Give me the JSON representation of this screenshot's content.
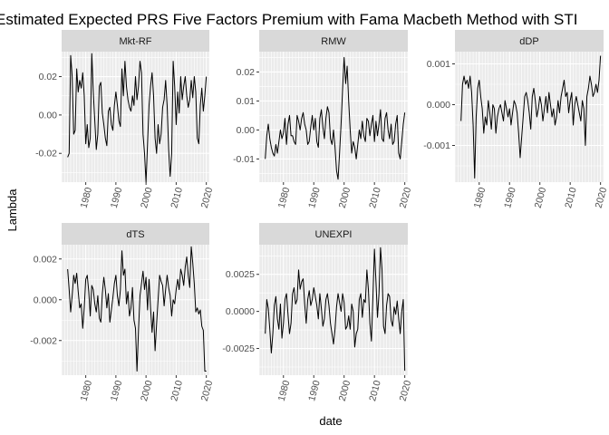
{
  "chart_data": {
    "type": "line",
    "title": "Estimated Expected PRS Five Factors Premium with Fama Macbeth Method with STI",
    "xlabel": "date",
    "ylabel": "Lambda",
    "x_ticks": [
      "1980",
      "1990",
      "2000",
      "2010",
      "2020"
    ],
    "xlim": [
      1972,
      2021
    ],
    "facets": [
      {
        "name": "Mkt-RF",
        "ylim": [
          -0.035,
          0.033
        ],
        "y_ticks": [
          0.02,
          0.0,
          -0.02
        ],
        "y_tick_labels": [
          "0.02",
          "0.00",
          "-0.02"
        ],
        "x": [
          1974,
          1974.5,
          1975,
          1975.5,
          1976,
          1976.5,
          1977,
          1977.5,
          1978,
          1978.5,
          1979,
          1979.5,
          1980,
          1980.5,
          1981,
          1981.5,
          1982,
          1982.5,
          1983,
          1983.5,
          1984,
          1984.5,
          1985,
          1985.5,
          1986,
          1986.5,
          1987,
          1987.5,
          1988,
          1988.5,
          1989,
          1989.5,
          1990,
          1990.5,
          1991,
          1991.5,
          1992,
          1992.5,
          1993,
          1993.5,
          1994,
          1994.5,
          1995,
          1995.5,
          1996,
          1996.5,
          1997,
          1997.5,
          1998,
          1998.5,
          1999,
          1999.5,
          2000,
          2000.5,
          2001,
          2001.5,
          2002,
          2002.5,
          2003,
          2003.5,
          2004,
          2004.5,
          2005,
          2005.5,
          2006,
          2006.5,
          2007,
          2007.5,
          2008,
          2008.5,
          2009,
          2009.5,
          2010,
          2010.5,
          2011,
          2011.5,
          2012,
          2012.5,
          2013,
          2013.5,
          2014,
          2014.5,
          2015,
          2015.5,
          2016,
          2016.5,
          2017,
          2017.5,
          2018,
          2018.5,
          2019,
          2019.5,
          2020
        ],
        "y": [
          -0.022,
          -0.02,
          0.031,
          0.02,
          -0.01,
          -0.008,
          0.024,
          0.012,
          0.018,
          0.014,
          0.022,
          0.01,
          -0.015,
          -0.005,
          -0.017,
          -0.012,
          0.032,
          0.012,
          -0.003,
          -0.018,
          -0.01,
          0.015,
          0.017,
          0.001,
          -0.005,
          -0.012,
          -0.016,
          0.002,
          0.004,
          -0.005,
          -0.008,
          0.005,
          0.012,
          0.005,
          -0.003,
          -0.006,
          0.024,
          0.01,
          0.028,
          0.015,
          0.008,
          0.004,
          0.002,
          0.01,
          0.005,
          0.02,
          0.008,
          0.015,
          0.028,
          0.022,
          -0.01,
          -0.02,
          -0.035,
          -0.015,
          0.005,
          0.015,
          0.022,
          0.01,
          -0.012,
          -0.02,
          -0.005,
          -0.015,
          -0.01,
          0.004,
          0.008,
          0.018,
          0.005,
          -0.018,
          -0.032,
          -0.02,
          0.028,
          0.015,
          -0.005,
          0.012,
          0.001,
          0.02,
          0.008,
          0.015,
          0.02,
          0.01,
          0.004,
          0.008,
          0.018,
          0.009,
          0.02,
          0.012,
          -0.012,
          -0.015,
          0.005,
          0.014,
          0.002,
          0.01,
          0.02
        ]
      },
      {
        "name": "RMW",
        "ylim": [
          -0.018,
          0.027
        ],
        "y_ticks": [
          0.02,
          0.01,
          0.0,
          -0.01
        ],
        "y_tick_labels": [
          "0.02",
          "0.01",
          "0.00",
          "-0.01"
        ],
        "x": [
          1974,
          1974.5,
          1975,
          1975.5,
          1976,
          1976.5,
          1977,
          1977.5,
          1978,
          1978.5,
          1979,
          1979.5,
          1980,
          1980.5,
          1981,
          1981.5,
          1982,
          1982.5,
          1983,
          1983.5,
          1984,
          1984.5,
          1985,
          1985.5,
          1986,
          1986.5,
          1987,
          1987.5,
          1988,
          1988.5,
          1989,
          1989.5,
          1990,
          1990.5,
          1991,
          1991.5,
          1992,
          1992.5,
          1993,
          1993.5,
          1994,
          1994.5,
          1995,
          1995.5,
          1996,
          1996.5,
          1997,
          1997.5,
          1998,
          1998.5,
          1999,
          1999.5,
          2000,
          2000.5,
          2001,
          2001.5,
          2002,
          2002.5,
          2003,
          2003.5,
          2004,
          2004.5,
          2005,
          2005.5,
          2006,
          2006.5,
          2007,
          2007.5,
          2008,
          2008.5,
          2009,
          2009.5,
          2010,
          2010.5,
          2011,
          2011.5,
          2012,
          2012.5,
          2013,
          2013.5,
          2014,
          2014.5,
          2015,
          2015.5,
          2016,
          2016.5,
          2017,
          2017.5,
          2018,
          2018.5,
          2019,
          2019.5,
          2020
        ],
        "y": [
          -0.01,
          -0.002,
          0.002,
          -0.003,
          -0.006,
          -0.008,
          -0.009,
          -0.005,
          -0.008,
          -0.004,
          0.0,
          -0.003,
          -0.001,
          0.004,
          -0.005,
          0.002,
          0.005,
          -0.002,
          -0.002,
          -0.004,
          -0.005,
          0.005,
          0.003,
          0.0,
          0.004,
          0.006,
          0.002,
          0.0,
          -0.005,
          -0.004,
          0.001,
          0.005,
          0.0,
          0.004,
          -0.004,
          -0.006,
          0.004,
          0.007,
          0.001,
          -0.003,
          0.004,
          0.008,
          0.006,
          -0.003,
          -0.005,
          0.0,
          -0.006,
          -0.014,
          -0.017,
          -0.008,
          0.002,
          0.014,
          0.025,
          0.016,
          0.022,
          0.01,
          0.0,
          -0.008,
          -0.004,
          -0.006,
          -0.01,
          -0.005,
          0.0,
          -0.003,
          0.003,
          -0.002,
          -0.004,
          0.004,
          0.003,
          -0.002,
          0.002,
          0.005,
          -0.004,
          0.003,
          -0.002,
          0.002,
          0.007,
          -0.003,
          -0.004,
          0.004,
          0.006,
          0.0,
          -0.003,
          0.002,
          -0.005,
          -0.004,
          0.002,
          0.005,
          -0.008,
          -0.01,
          -0.004,
          0.002,
          0.006
        ]
      },
      {
        "name": "dDP",
        "ylim": [
          -0.0019,
          0.0013
        ],
        "y_ticks": [
          0.001,
          0.0,
          -0.001
        ],
        "y_tick_labels": [
          "0.001",
          "0.000",
          "-0.001"
        ],
        "x": [
          1974,
          1974.5,
          1975,
          1975.5,
          1976,
          1976.5,
          1977,
          1977.5,
          1978,
          1978.5,
          1979,
          1979.5,
          1980,
          1980.5,
          1981,
          1981.5,
          1982,
          1982.5,
          1983,
          1983.5,
          1984,
          1984.5,
          1985,
          1985.5,
          1986,
          1986.5,
          1987,
          1987.5,
          1988,
          1988.5,
          1989,
          1989.5,
          1990,
          1990.5,
          1991,
          1991.5,
          1992,
          1992.5,
          1993,
          1993.5,
          1994,
          1994.5,
          1995,
          1995.5,
          1996,
          1996.5,
          1997,
          1997.5,
          1998,
          1998.5,
          1999,
          1999.5,
          2000,
          2000.5,
          2001,
          2001.5,
          2002,
          2002.5,
          2003,
          2003.5,
          2004,
          2004.5,
          2005,
          2005.5,
          2006,
          2006.5,
          2007,
          2007.5,
          2008,
          2008.5,
          2009,
          2009.5,
          2010,
          2010.5,
          2011,
          2011.5,
          2012,
          2012.5,
          2013,
          2013.5,
          2014,
          2014.5,
          2015,
          2015.5,
          2016,
          2016.5,
          2017,
          2017.5,
          2018,
          2018.5,
          2019,
          2019.5,
          2020
        ],
        "y": [
          -0.0004,
          0.0005,
          0.0007,
          0.0005,
          0.0006,
          0.0004,
          0.0007,
          0.0003,
          -0.0005,
          -0.0018,
          -0.0003,
          0.0004,
          0.0006,
          0.0002,
          -0.0001,
          -0.0007,
          -0.0003,
          -0.0005,
          0.0001,
          -0.0002,
          -0.0006,
          0.0,
          -0.0001,
          -0.0007,
          -0.0003,
          -0.0001,
          0.0,
          -0.0002,
          -0.0004,
          0.0001,
          -0.0001,
          -0.0003,
          -0.0001,
          -0.0005,
          -0.0002,
          0.0001,
          0.0,
          -0.0002,
          -0.0007,
          -0.0013,
          -0.0008,
          -0.0003,
          0.0002,
          0.0003,
          0.0001,
          -0.0002,
          -0.0006,
          0.0002,
          0.0004,
          0.0001,
          -0.0003,
          -0.0001,
          0.0002,
          0.0,
          -0.0004,
          -0.0001,
          0.0002,
          -0.0002,
          0.0003,
          0.0,
          -0.0003,
          -0.0001,
          -0.0005,
          -0.0003,
          0.0001,
          -0.0002,
          0.0002,
          0.0004,
          0.0006,
          0.0002,
          0.0003,
          -0.0002,
          0.0001,
          0.0003,
          -0.0005,
          0.0,
          0.0002,
          0.0,
          -0.0002,
          -0.0004,
          0.0001,
          -0.0001,
          -0.001,
          0.0002,
          0.0004,
          0.0007,
          0.0005,
          0.0002,
          0.0003,
          0.0005,
          0.0003,
          0.0006,
          0.0012
        ]
      },
      {
        "name": "dTS",
        "ylim": [
          -0.0037,
          0.0027
        ],
        "y_ticks": [
          0.002,
          0.0,
          -0.002
        ],
        "y_tick_labels": [
          "0.002",
          "0.000",
          "-0.002"
        ],
        "x": [
          1974,
          1974.5,
          1975,
          1975.5,
          1976,
          1976.5,
          1977,
          1977.5,
          1978,
          1978.5,
          1979,
          1979.5,
          1980,
          1980.5,
          1981,
          1981.5,
          1982,
          1982.5,
          1983,
          1983.5,
          1984,
          1984.5,
          1985,
          1985.5,
          1986,
          1986.5,
          1987,
          1987.5,
          1988,
          1988.5,
          1989,
          1989.5,
          1990,
          1990.5,
          1991,
          1991.5,
          1992,
          1992.5,
          1993,
          1993.5,
          1994,
          1994.5,
          1995,
          1995.5,
          1996,
          1996.5,
          1997,
          1997.5,
          1998,
          1998.5,
          1999,
          1999.5,
          2000,
          2000.5,
          2001,
          2001.5,
          2002,
          2002.5,
          2003,
          2003.5,
          2004,
          2004.5,
          2005,
          2005.5,
          2006,
          2006.5,
          2007,
          2007.5,
          2008,
          2008.5,
          2009,
          2009.5,
          2010,
          2010.5,
          2011,
          2011.5,
          2012,
          2012.5,
          2013,
          2013.5,
          2014,
          2014.5,
          2015,
          2015.5,
          2016,
          2016.5,
          2017,
          2017.5,
          2018,
          2018.5,
          2019,
          2019.5,
          2020
        ],
        "y": [
          0.0015,
          0.0005,
          -0.0006,
          0.0002,
          0.0012,
          0.0008,
          0.0013,
          0.0004,
          -0.0004,
          -0.0002,
          -0.0014,
          -0.0004,
          0.001,
          0.0012,
          0.0004,
          -0.0008,
          0.0007,
          0.0005,
          -0.0002,
          -0.0006,
          0.0002,
          -0.0009,
          -0.0011,
          0.0003,
          0.0011,
          0.0005,
          -0.0004,
          0.0003,
          -0.0011,
          -0.0005,
          0.0001,
          0.0008,
          0.0012,
          0.0002,
          -0.0003,
          0.0005,
          0.0024,
          0.0012,
          0.0015,
          -0.0002,
          0.0004,
          -0.0008,
          -0.0004,
          0.0006,
          -0.001,
          -0.0014,
          -0.0035,
          -0.0015,
          0.0002,
          0.0008,
          0.0014,
          0.0005,
          0.0011,
          -0.0005,
          0.001,
          -0.0004,
          -0.0016,
          -0.0006,
          -0.0025,
          -0.0012,
          0.0,
          0.0012,
          0.0009,
          0.0007,
          -0.0003,
          0.0005,
          0.0012,
          0.0006,
          0.0002,
          -0.0008,
          0.0,
          -0.0002,
          0.0005,
          0.001,
          0.0005,
          0.0015,
          0.0012,
          0.0007,
          0.0016,
          0.0021,
          0.0012,
          0.0006,
          0.0026,
          0.0018,
          0.0008,
          -0.0006,
          -0.0004,
          -0.0007,
          -0.0005,
          -0.0013,
          -0.0015,
          -0.0035,
          -0.0035
        ]
      },
      {
        "name": "UNEXPI",
        "ylim": [
          -0.0043,
          0.0045
        ],
        "y_ticks": [
          0.0025,
          0.0,
          -0.0025
        ],
        "y_tick_labels": [
          "0.0025",
          "0.0000",
          "-0.0025"
        ],
        "x": [
          1974,
          1974.5,
          1975,
          1975.5,
          1976,
          1976.5,
          1977,
          1977.5,
          1978,
          1978.5,
          1979,
          1979.5,
          1980,
          1980.5,
          1981,
          1981.5,
          1982,
          1982.5,
          1983,
          1983.5,
          1984,
          1984.5,
          1985,
          1985.5,
          1986,
          1986.5,
          1987,
          1987.5,
          1988,
          1988.5,
          1989,
          1989.5,
          1990,
          1990.5,
          1991,
          1991.5,
          1992,
          1992.5,
          1993,
          1993.5,
          1994,
          1994.5,
          1995,
          1995.5,
          1996,
          1996.5,
          1997,
          1997.5,
          1998,
          1998.5,
          1999,
          1999.5,
          2000,
          2000.5,
          2001,
          2001.5,
          2002,
          2002.5,
          2003,
          2003.5,
          2004,
          2004.5,
          2005,
          2005.5,
          2006,
          2006.5,
          2007,
          2007.5,
          2008,
          2008.5,
          2009,
          2009.5,
          2010,
          2010.5,
          2011,
          2011.5,
          2012,
          2012.5,
          2013,
          2013.5,
          2014,
          2014.5,
          2015,
          2015.5,
          2016,
          2016.5,
          2017,
          2017.5,
          2018,
          2018.5,
          2019,
          2019.5,
          2020
        ],
        "y": [
          -0.0015,
          0.0008,
          0.0002,
          -0.0012,
          -0.0028,
          -0.0015,
          0.0004,
          0.001,
          -0.0005,
          -0.0012,
          0.0005,
          -0.0018,
          -0.0008,
          0.0008,
          0.0012,
          -0.0002,
          -0.0015,
          -0.0008,
          0.0012,
          0.0016,
          0.0005,
          0.0008,
          0.0028,
          0.0015,
          0.002,
          0.0022,
          0.0005,
          -0.0008,
          0.0008,
          0.0014,
          0.0004,
          0.0008,
          0.0016,
          0.001,
          0.0004,
          -0.0005,
          0.0012,
          0.0002,
          -0.001,
          -0.0005,
          0.0008,
          0.0012,
          0.0004,
          -0.0008,
          -0.0015,
          -0.0022,
          -0.0012,
          0.0003,
          0.0012,
          0.0006,
          0.0,
          0.0012,
          0.0006,
          -0.0012,
          -0.001,
          -0.0003,
          -0.0012,
          0.0005,
          0.0,
          -0.0024,
          -0.0015,
          -0.0012,
          0.0008,
          0.0012,
          -0.0004,
          0.0008,
          0.0006,
          0.0028,
          0.0015,
          -0.0008,
          -0.002,
          0.001,
          0.0042,
          0.002,
          -0.0004,
          0.0012,
          0.0043,
          0.0028,
          -0.001,
          -0.0015,
          0.0004,
          0.0012,
          0.001,
          -0.0006,
          -0.001,
          0.0003,
          -0.0002,
          0.0007,
          -0.0005,
          -0.0015,
          0.0,
          0.0008,
          -0.004
        ]
      }
    ]
  }
}
